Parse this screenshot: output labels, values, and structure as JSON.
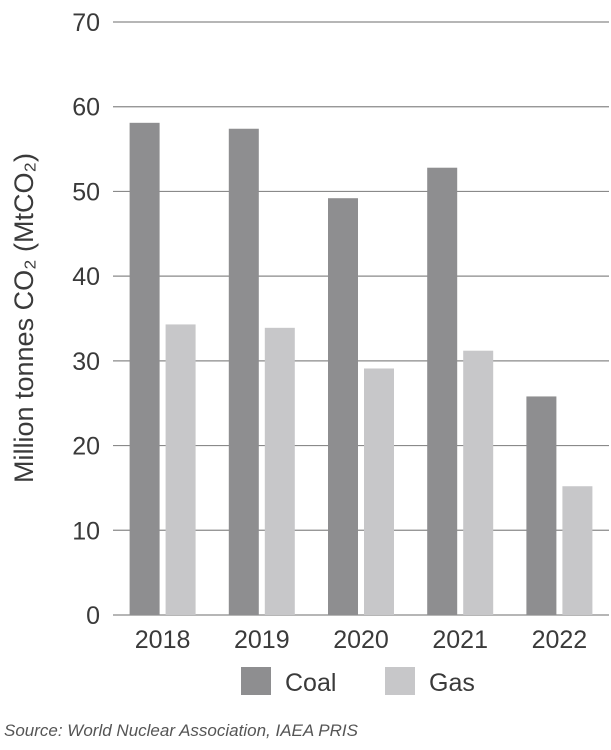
{
  "chart_data": {
    "type": "bar",
    "categories": [
      "2018",
      "2019",
      "2020",
      "2021",
      "2022"
    ],
    "series": [
      {
        "name": "Coal",
        "values": [
          58.1,
          57.4,
          49.2,
          52.8,
          25.8
        ],
        "color": "#8e8e90"
      },
      {
        "name": "Gas",
        "values": [
          34.3,
          33.9,
          29.1,
          31.2,
          15.2
        ],
        "color": "#c7c7c9"
      }
    ],
    "ylabel": "Million tonnes CO₂ (MtCO₂)",
    "ylim": [
      0,
      70
    ],
    "yticks": [
      0,
      10,
      20,
      30,
      40,
      50,
      60,
      70
    ],
    "grid": true,
    "legend_position": "bottom"
  },
  "source": "Source: World Nuclear Association, IAEA PRIS"
}
